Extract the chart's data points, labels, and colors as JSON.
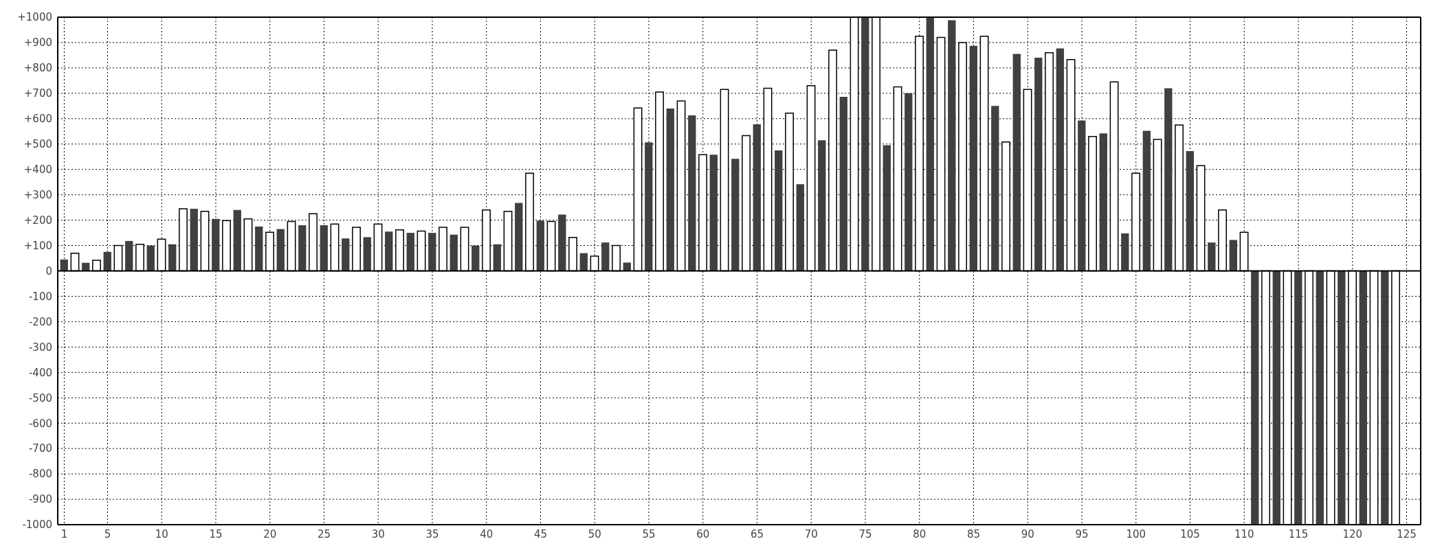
{
  "chart_data": {
    "type": "bar",
    "x": [
      1,
      2,
      3,
      4,
      5,
      6,
      7,
      8,
      9,
      10,
      11,
      12,
      13,
      14,
      15,
      16,
      17,
      18,
      19,
      20,
      21,
      22,
      23,
      24,
      25,
      26,
      27,
      28,
      29,
      30,
      31,
      32,
      33,
      34,
      35,
      36,
      37,
      38,
      39,
      40,
      41,
      42,
      43,
      44,
      45,
      46,
      47,
      48,
      49,
      50,
      51,
      52,
      53,
      54,
      55,
      56,
      57,
      58,
      59,
      60,
      61,
      62,
      63,
      64,
      65,
      66,
      67,
      68,
      69,
      70,
      71,
      72,
      73,
      74,
      75,
      76,
      77,
      78,
      79,
      80,
      81,
      82,
      83,
      84,
      85,
      86,
      87,
      88,
      89,
      90,
      91,
      92,
      93,
      94,
      95,
      96,
      97,
      98,
      99,
      100,
      101,
      102,
      103,
      104,
      105,
      106,
      107,
      108,
      109,
      110,
      111,
      112,
      113,
      114,
      115,
      116,
      117,
      118,
      119,
      120,
      121,
      122,
      123,
      124
    ],
    "values": [
      45,
      70,
      32,
      42,
      75,
      100,
      118,
      105,
      100,
      125,
      105,
      245,
      245,
      235,
      205,
      198,
      240,
      205,
      175,
      152,
      165,
      195,
      180,
      225,
      180,
      185,
      128,
      172,
      133,
      185,
      155,
      162,
      150,
      157,
      150,
      172,
      143,
      172,
      100,
      240,
      105,
      235,
      268,
      385,
      198,
      195,
      222,
      132,
      70,
      58,
      112,
      100,
      33,
      642,
      507,
      705,
      640,
      670,
      613,
      458,
      458,
      715,
      442,
      533,
      578,
      720,
      475,
      622,
      342,
      730,
      515,
      870,
      686,
      1000,
      1000,
      1000,
      495,
      725,
      700,
      925,
      1000,
      920,
      988,
      900,
      887,
      925,
      650,
      508,
      855,
      715,
      840,
      860,
      877,
      833,
      593,
      530,
      542,
      745,
      148,
      385,
      552,
      518,
      720,
      575,
      472,
      415,
      112,
      240,
      122,
      152,
      -1000,
      -1000,
      -1000,
      -1000,
      -1000,
      -1000,
      -1000,
      -1000,
      -1000,
      -1000,
      -1000,
      -1000,
      -1000,
      -1000
    ],
    "colors": [
      "#404040",
      "#ffffff",
      "#404040",
      "#ffffff",
      "#404040",
      "#ffffff",
      "#404040",
      "#ffffff",
      "#404040",
      "#ffffff",
      "#404040",
      "#ffffff",
      "#404040",
      "#ffffff",
      "#404040",
      "#ffffff",
      "#404040",
      "#ffffff",
      "#404040",
      "#ffffff",
      "#404040",
      "#ffffff",
      "#404040",
      "#ffffff",
      "#404040",
      "#ffffff",
      "#404040",
      "#ffffff",
      "#404040",
      "#ffffff",
      "#404040",
      "#ffffff",
      "#404040",
      "#ffffff",
      "#404040",
      "#ffffff",
      "#404040",
      "#ffffff",
      "#404040",
      "#ffffff",
      "#404040",
      "#ffffff",
      "#404040",
      "#ffffff",
      "#404040",
      "#ffffff",
      "#404040",
      "#ffffff",
      "#404040",
      "#ffffff",
      "#404040",
      "#ffffff",
      "#404040",
      "#ffffff",
      "#404040",
      "#ffffff",
      "#404040",
      "#ffffff",
      "#404040",
      "#ffffff",
      "#404040",
      "#ffffff",
      "#404040",
      "#ffffff",
      "#404040",
      "#ffffff",
      "#404040",
      "#ffffff",
      "#404040",
      "#ffffff",
      "#404040",
      "#ffffff",
      "#404040",
      "#ffffff",
      "#404040",
      "#ffffff",
      "#404040",
      "#ffffff",
      "#404040",
      "#ffffff",
      "#404040",
      "#ffffff",
      "#404040",
      "#ffffff",
      "#404040",
      "#ffffff",
      "#404040",
      "#ffffff",
      "#404040",
      "#ffffff",
      "#404040",
      "#ffffff",
      "#404040",
      "#ffffff",
      "#404040",
      "#ffffff",
      "#404040",
      "#ffffff",
      "#404040",
      "#ffffff",
      "#404040",
      "#ffffff",
      "#404040",
      "#ffffff",
      "#404040",
      "#ffffff",
      "#404040",
      "#ffffff",
      "#404040",
      "#ffffff",
      "#404040",
      "#ffffff",
      "#404040",
      "#ffffff",
      "#404040",
      "#ffffff",
      "#404040",
      "#ffffff",
      "#404040",
      "#ffffff",
      "#404040",
      "#ffffff",
      "#404040",
      "#ffffff"
    ],
    "xlim": [
      0.4,
      126.3
    ],
    "xticks": [
      1,
      5,
      10,
      15,
      20,
      25,
      30,
      35,
      40,
      45,
      50,
      55,
      60,
      65,
      70,
      75,
      80,
      85,
      90,
      95,
      100,
      105,
      110,
      115,
      120,
      125
    ],
    "ylim": [
      -1000,
      1000
    ],
    "yticks": [
      -1000,
      -900,
      -800,
      -700,
      -600,
      -500,
      -400,
      -300,
      -200,
      -100,
      0,
      {
        "value": 100,
        "label": "+100"
      },
      {
        "value": 200,
        "label": "+200"
      },
      {
        "value": 300,
        "label": "+300"
      },
      {
        "value": 400,
        "label": "+400"
      },
      {
        "value": 500,
        "label": "+500"
      },
      {
        "value": 600,
        "label": "+600"
      },
      {
        "value": 700,
        "label": "+700"
      },
      {
        "value": 800,
        "label": "+800"
      },
      {
        "value": 900,
        "label": "+900"
      },
      {
        "value": 1000,
        "label": "+1000"
      }
    ],
    "grid": true,
    "legend": false
  }
}
